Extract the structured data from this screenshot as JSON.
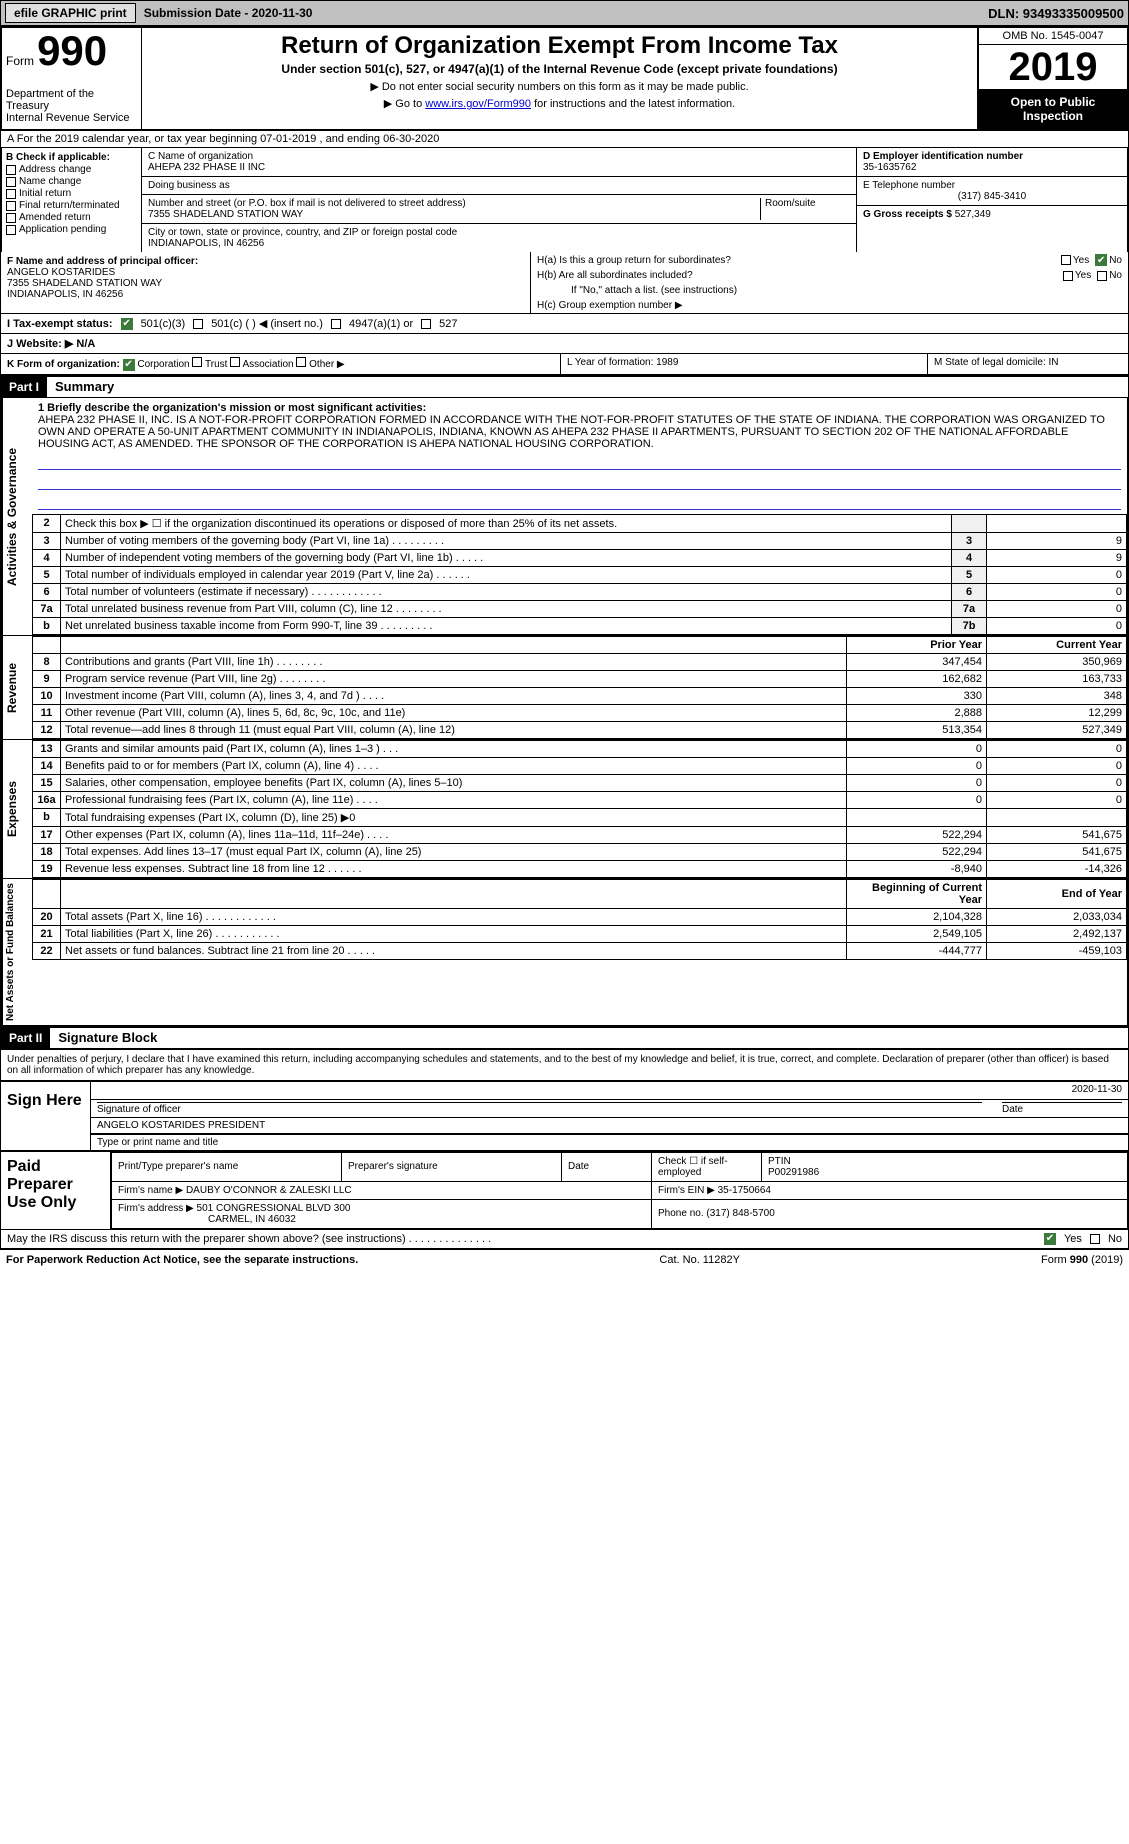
{
  "topbar": {
    "efile": "efile GRAPHIC print",
    "submission": "Submission Date - 2020-11-30",
    "dln": "DLN: 93493335009500"
  },
  "header": {
    "form_label": "Form",
    "form_no": "990",
    "dept": "Department of the Treasury\nInternal Revenue Service",
    "title": "Return of Organization Exempt From Income Tax",
    "subtitle": "Under section 501(c), 527, or 4947(a)(1) of the Internal Revenue Code (except private foundations)",
    "note1": "▶ Do not enter social security numbers on this form as it may be made public.",
    "note2_pre": "▶ Go to ",
    "note2_link": "www.irs.gov/Form990",
    "note2_post": " for instructions and the latest information.",
    "omb": "OMB No. 1545-0047",
    "year": "2019",
    "open": "Open to Public Inspection"
  },
  "row_a": "A For the 2019 calendar year, or tax year beginning 07-01-2019     , and ending 06-30-2020",
  "box_b": {
    "title": "B Check if applicable:",
    "items": [
      "Address change",
      "Name change",
      "Initial return",
      "Final return/terminated",
      "Amended return",
      "Application pending"
    ]
  },
  "box_c": {
    "name_label": "C Name of organization",
    "name": "AHEPA 232 PHASE II INC",
    "dba": "Doing business as",
    "addr_label": "Number and street (or P.O. box if mail is not delivered to street address)",
    "room": "Room/suite",
    "addr": "7355 SHADELAND STATION WAY",
    "city_label": "City or town, state or province, country, and ZIP or foreign postal code",
    "city": "INDIANAPOLIS, IN  46256"
  },
  "box_d": {
    "ein_label": "D Employer identification number",
    "ein": "35-1635762",
    "tel_label": "E Telephone number",
    "tel": "(317) 845-3410",
    "gross_label": "G Gross receipts $",
    "gross": "527,349"
  },
  "box_f": {
    "label": "F Name and address of principal officer:",
    "name": "ANGELO KOSTARIDES",
    "addr1": "7355 SHADELAND STATION WAY",
    "addr2": "INDIANAPOLIS, IN  46256"
  },
  "box_h": {
    "ha": "H(a)  Is this a group return for subordinates?",
    "hb": "H(b)  Are all subordinates included?",
    "hb_note": "If \"No,\" attach a list. (see instructions)",
    "hc": "H(c)  Group exemption number ▶",
    "yes": "Yes",
    "no": "No"
  },
  "row_i": {
    "label": "I   Tax-exempt status:",
    "opt1": "501(c)(3)",
    "opt2": "501(c) (   ) ◀ (insert no.)",
    "opt3": "4947(a)(1) or",
    "opt4": "527"
  },
  "row_j": "J   Website: ▶  N/A",
  "row_k": {
    "k": "K Form of organization:",
    "corp": "Corporation",
    "trust": "Trust",
    "assoc": "Association",
    "other": "Other ▶",
    "l": "L Year of formation: 1989",
    "m": "M State of legal domicile: IN"
  },
  "part1": {
    "hdr": "Part I",
    "title": "Summary"
  },
  "mission": {
    "label": "1  Briefly describe the organization's mission or most significant activities:",
    "text": "AHEPA 232 PHASE II, INC. IS A NOT-FOR-PROFIT CORPORATION FORMED IN ACCORDANCE WITH THE NOT-FOR-PROFIT STATUTES OF THE STATE OF INDIANA. THE CORPORATION WAS ORGANIZED TO OWN AND OPERATE A 50-UNIT APARTMENT COMMUNITY IN INDIANAPOLIS, INDIANA, KNOWN AS AHEPA 232 PHASE II APARTMENTS, PURSUANT TO SECTION 202 OF THE NATIONAL AFFORDABLE HOUSING ACT, AS AMENDED. THE SPONSOR OF THE CORPORATION IS AHEPA NATIONAL HOUSING CORPORATION."
  },
  "gov_lines": [
    {
      "n": "2",
      "d": "Check this box ▶ ☐  if the organization discontinued its operations or disposed of more than 25% of its net assets.",
      "k": "",
      "v": ""
    },
    {
      "n": "3",
      "d": "Number of voting members of the governing body (Part VI, line 1a)  .    .    .    .    .    .    .    .    .",
      "k": "3",
      "v": "9"
    },
    {
      "n": "4",
      "d": "Number of independent voting members of the governing body (Part VI, line 1b)  .    .    .    .    .",
      "k": "4",
      "v": "9"
    },
    {
      "n": "5",
      "d": "Total number of individuals employed in calendar year 2019 (Part V, line 2a)  .    .    .    .    .    .",
      "k": "5",
      "v": "0"
    },
    {
      "n": "6",
      "d": "Total number of volunteers (estimate if necessary)  .    .    .    .    .    .    .    .    .    .    .    .",
      "k": "6",
      "v": "0"
    },
    {
      "n": "7a",
      "d": "Total unrelated business revenue from Part VIII, column (C), line 12  .    .    .    .    .    .    .    .",
      "k": "7a",
      "v": "0"
    },
    {
      "n": "b",
      "d": "Net unrelated business taxable income from Form 990-T, line 39  .    .    .    .    .    .    .    .    .",
      "k": "7b",
      "v": "0"
    }
  ],
  "rev_hdr": {
    "prior": "Prior Year",
    "curr": "Current Year"
  },
  "rev_lines": [
    {
      "n": "8",
      "d": "Contributions and grants (Part VIII, line 1h)  .    .    .    .    .    .    .    .",
      "p": "347,454",
      "c": "350,969"
    },
    {
      "n": "9",
      "d": "Program service revenue (Part VIII, line 2g)  .    .    .    .    .    .    .    .",
      "p": "162,682",
      "c": "163,733"
    },
    {
      "n": "10",
      "d": "Investment income (Part VIII, column (A), lines 3, 4, and 7d )  .    .    .    .",
      "p": "330",
      "c": "348"
    },
    {
      "n": "11",
      "d": "Other revenue (Part VIII, column (A), lines 5, 6d, 8c, 9c, 10c, and 11e)",
      "p": "2,888",
      "c": "12,299"
    },
    {
      "n": "12",
      "d": "Total revenue—add lines 8 through 11 (must equal Part VIII, column (A), line 12)",
      "p": "513,354",
      "c": "527,349"
    }
  ],
  "exp_lines": [
    {
      "n": "13",
      "d": "Grants and similar amounts paid (Part IX, column (A), lines 1–3 )  .    .    .",
      "p": "0",
      "c": "0"
    },
    {
      "n": "14",
      "d": "Benefits paid to or for members (Part IX, column (A), line 4)  .    .    .    .",
      "p": "0",
      "c": "0"
    },
    {
      "n": "15",
      "d": "Salaries, other compensation, employee benefits (Part IX, column (A), lines 5–10)",
      "p": "0",
      "c": "0"
    },
    {
      "n": "16a",
      "d": "Professional fundraising fees (Part IX, column (A), line 11e)  .    .    .    .",
      "p": "0",
      "c": "0"
    },
    {
      "n": "b",
      "d": "Total fundraising expenses (Part IX, column (D), line 25) ▶0",
      "p": "",
      "c": ""
    },
    {
      "n": "17",
      "d": "Other expenses (Part IX, column (A), lines 11a–11d, 11f–24e)  .    .    .    .",
      "p": "522,294",
      "c": "541,675"
    },
    {
      "n": "18",
      "d": "Total expenses. Add lines 13–17 (must equal Part IX, column (A), line 25)",
      "p": "522,294",
      "c": "541,675"
    },
    {
      "n": "19",
      "d": "Revenue less expenses. Subtract line 18 from line 12  .    .    .    .    .    .",
      "p": "-8,940",
      "c": "-14,326"
    }
  ],
  "na_hdr": {
    "b": "Beginning of Current Year",
    "e": "End of Year"
  },
  "na_lines": [
    {
      "n": "20",
      "d": "Total assets (Part X, line 16)  .    .    .    .    .    .    .    .    .    .    .    .",
      "p": "2,104,328",
      "c": "2,033,034"
    },
    {
      "n": "21",
      "d": "Total liabilities (Part X, line 26)  .    .    .    .    .    .    .    .    .    .    .",
      "p": "2,549,105",
      "c": "2,492,137"
    },
    {
      "n": "22",
      "d": "Net assets or fund balances. Subtract line 21 from line 20  .    .    .    .    .",
      "p": "-444,777",
      "c": "-459,103"
    }
  ],
  "part2": {
    "hdr": "Part II",
    "title": "Signature Block"
  },
  "sig_decl": "Under penalties of perjury, I declare that I have examined this return, including accompanying schedules and statements, and to the best of my knowledge and belief, it is true, correct, and complete. Declaration of preparer (other than officer) is based on all information of which preparer has any knowledge.",
  "sign_here": "Sign Here",
  "sig": {
    "sig_label": "Signature of officer",
    "date": "2020-11-30",
    "date_label": "Date",
    "name": "ANGELO KOSTARIDES PRESIDENT",
    "name_label": "Type or print name and title"
  },
  "paid": {
    "title": "Paid Preparer Use Only",
    "h1": "Print/Type preparer's name",
    "h2": "Preparer's signature",
    "h3": "Date",
    "h4_a": "Check ☐ if self-employed",
    "h4_b": "PTIN",
    "ptin": "P00291986",
    "firm_label": "Firm's name    ▶",
    "firm": "DAUBY O'CONNOR & ZALESKI LLC",
    "ein_label": "Firm's EIN ▶",
    "ein": "35-1750664",
    "addr_label": "Firm's address ▶",
    "addr1": "501 CONGRESSIONAL BLVD 300",
    "addr2": "CARMEL, IN  46032",
    "phone_label": "Phone no.",
    "phone": "(317) 848-5700"
  },
  "discuss": "May the IRS discuss this return with the preparer shown above? (see instructions)  .    .    .    .    .    .    .    .    .    .    .    .    .    .",
  "footer": {
    "left": "For Paperwork Reduction Act Notice, see the separate instructions.",
    "mid": "Cat. No. 11282Y",
    "right_a": "Form ",
    "right_b": "990",
    "right_c": " (2019)"
  },
  "side": {
    "gov": "Activities & Governance",
    "rev": "Revenue",
    "exp": "Expenses",
    "na": "Net Assets or Fund Balances"
  }
}
